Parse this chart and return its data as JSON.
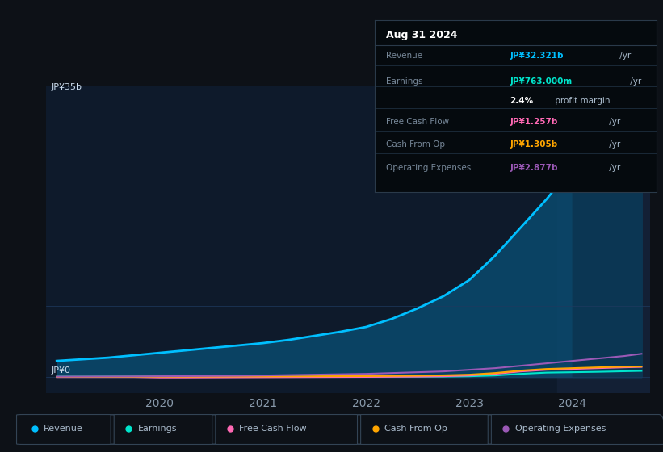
{
  "bg_color": "#0d1117",
  "plot_bg_color": "#0e1a2b",
  "plot_highlight_bg": "#132035",
  "title_date": "Aug 31 2024",
  "info_box": {
    "Revenue_label": "Revenue",
    "Revenue_value": "JP¥32.321b /yr",
    "Revenue_color": "#00bfff",
    "Earnings_label": "Earnings",
    "Earnings_value": "JP¥763.000m /yr",
    "Earnings_color": "#00e5cc",
    "profit_margin": "2.4% profit margin",
    "FreeCashFlow_label": "Free Cash Flow",
    "FreeCashFlow_value": "JP¥1.257b /yr",
    "FreeCashFlow_color": "#ff69b4",
    "CashFromOp_label": "Cash From Op",
    "CashFromOp_value": "JP¥1.305b /yr",
    "CashFromOp_color": "#ffa500",
    "OpEx_label": "Operating Expenses",
    "OpEx_value": "JP¥2.877b /yr",
    "OpEx_color": "#9b59b6"
  },
  "ytop_label": "JP¥35b",
  "yzero_label": "JP¥0",
  "x_years": [
    2019.0,
    2019.25,
    2019.5,
    2019.75,
    2020.0,
    2020.25,
    2020.5,
    2020.75,
    2021.0,
    2021.25,
    2021.5,
    2021.75,
    2022.0,
    2022.25,
    2022.5,
    2022.75,
    2023.0,
    2023.25,
    2023.5,
    2023.75,
    2024.0,
    2024.25,
    2024.5,
    2024.67
  ],
  "revenue": [
    2.0,
    2.2,
    2.4,
    2.7,
    3.0,
    3.3,
    3.6,
    3.9,
    4.2,
    4.6,
    5.1,
    5.6,
    6.2,
    7.2,
    8.5,
    10.0,
    12.0,
    15.0,
    18.5,
    22.0,
    26.0,
    29.0,
    31.5,
    32.321
  ],
  "earnings": [
    0.05,
    0.05,
    0.06,
    0.06,
    0.06,
    0.06,
    0.06,
    0.06,
    0.06,
    0.06,
    0.06,
    0.06,
    0.06,
    0.06,
    0.06,
    0.06,
    0.1,
    0.2,
    0.4,
    0.55,
    0.6,
    0.65,
    0.72,
    0.763
  ],
  "free_cash_flow": [
    0.0,
    0.0,
    0.0,
    0.0,
    -0.05,
    -0.05,
    -0.04,
    -0.03,
    -0.02,
    -0.01,
    0.0,
    0.01,
    0.02,
    0.04,
    0.06,
    0.1,
    0.2,
    0.4,
    0.7,
    0.9,
    1.0,
    1.1,
    1.2,
    1.257
  ],
  "cash_from_op": [
    0.02,
    0.02,
    0.02,
    0.03,
    0.04,
    0.05,
    0.06,
    0.07,
    0.08,
    0.09,
    0.1,
    0.11,
    0.12,
    0.15,
    0.18,
    0.22,
    0.3,
    0.5,
    0.8,
    1.0,
    1.1,
    1.2,
    1.28,
    1.305
  ],
  "op_expenses": [
    0.05,
    0.06,
    0.07,
    0.08,
    0.1,
    0.12,
    0.14,
    0.16,
    0.2,
    0.25,
    0.3,
    0.35,
    0.4,
    0.5,
    0.6,
    0.7,
    0.9,
    1.1,
    1.4,
    1.7,
    2.0,
    2.3,
    2.6,
    2.877
  ],
  "revenue_color": "#00bfff",
  "earnings_color": "#00e5cc",
  "fcf_color": "#ff69b4",
  "cashop_color": "#ffa500",
  "opex_color": "#9b59b6",
  "revenue_fill_color": "#0a4a6e",
  "grid_color": "#1e3a5f",
  "text_color": "#8899aa",
  "label_color": "#ccddee",
  "x_ticks": [
    2020,
    2021,
    2022,
    2023,
    2024
  ],
  "ylim": [
    -2,
    36
  ],
  "xlim": [
    2018.9,
    2024.75
  ],
  "highlight_x_start": 2023.85
}
